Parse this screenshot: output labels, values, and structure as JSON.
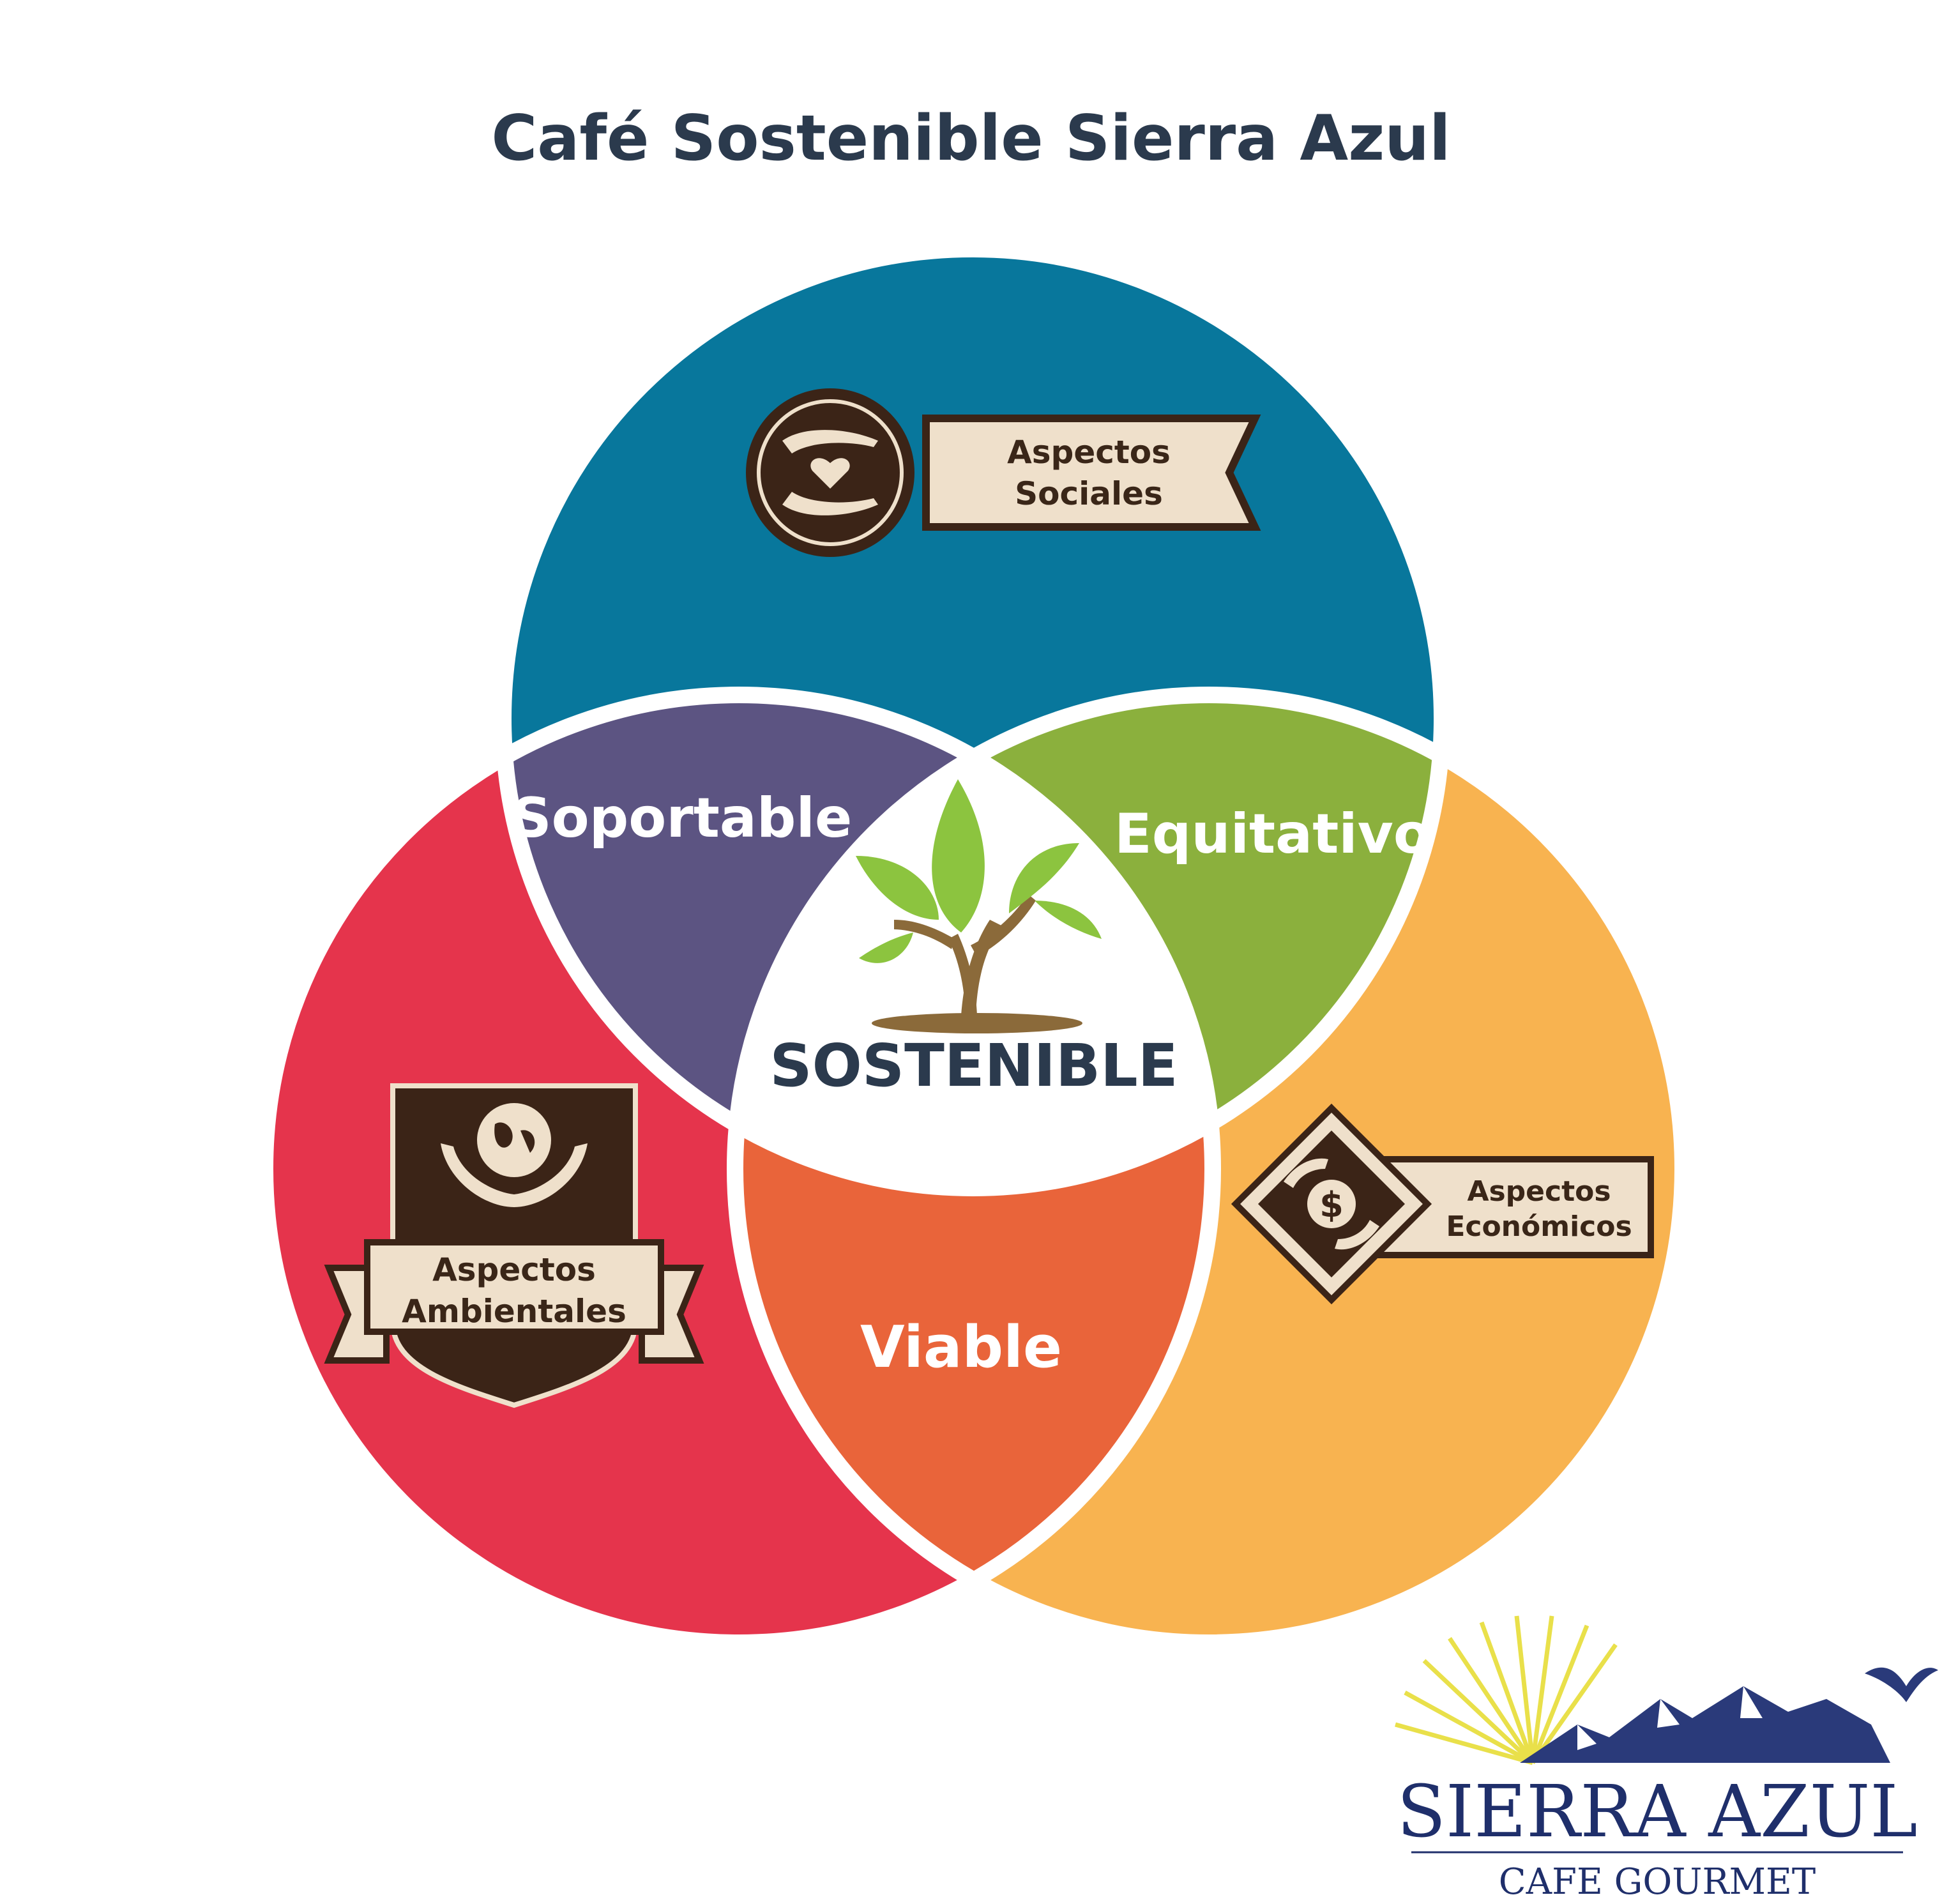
{
  "title": "Café Sostenible Sierra Azul",
  "colors": {
    "social": "#08779c",
    "environment": "#e5344c",
    "economic": "#f8b350",
    "soportable": "#5c5482",
    "equitativo": "#8bb03d",
    "viable": "#e9643a",
    "badge_dark": "#3b2417",
    "badge_light": "#efe0cb",
    "title": "#2b3a4d",
    "logo_blue": "#1f2f6b",
    "leaf": "#8cc43f",
    "trunk": "#8b6a3a"
  },
  "circles": {
    "social": {
      "label_line1": "Aspectos",
      "label_line2": "Sociales",
      "icon": "hands-heart-icon"
    },
    "environment": {
      "label_line1": "Aspectos",
      "label_line2": "Ambientales",
      "icon": "hands-globe-icon"
    },
    "economic": {
      "label_line1": "Aspectos",
      "label_line2": "Económicos",
      "icon": "hands-dollar-icon"
    }
  },
  "overlaps": {
    "soportable": "Soportable",
    "equitativo": "Equitativo",
    "viable": "Viable",
    "center": "SOSTENIBLE"
  },
  "logo": {
    "name": "SIERRA AZUL",
    "tagline": "CAFE GOURMET"
  }
}
